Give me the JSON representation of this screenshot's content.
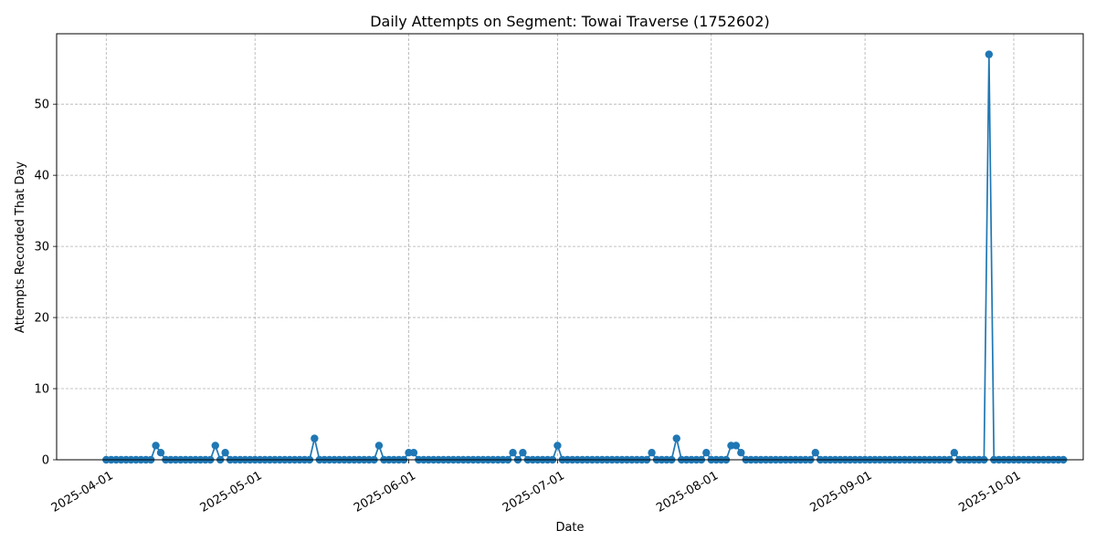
{
  "chart_data": {
    "type": "line",
    "title": "Daily Attempts on Segment: Towai Traverse (1752602)",
    "xlabel": "Date",
    "ylabel": "Attempts Recorded That Day",
    "xlim": [
      "2025-03-22",
      "2025-10-15"
    ],
    "ylim": [
      0,
      59.9
    ],
    "x_ticks": [
      "2025-04-01",
      "2025-05-01",
      "2025-06-01",
      "2025-07-01",
      "2025-08-01",
      "2025-09-01",
      "2025-10-01"
    ],
    "y_ticks": [
      0,
      10,
      20,
      30,
      40,
      50
    ],
    "grid": true,
    "series_color": "#1f77b4",
    "series": [
      {
        "start_date": "2025-04-01",
        "values": [
          0,
          0,
          0,
          0,
          0,
          0,
          0,
          0,
          0,
          0,
          2,
          1,
          0,
          0,
          0,
          0,
          0,
          0,
          0,
          0,
          0,
          0,
          2,
          0,
          1,
          0,
          0,
          0,
          0,
          0,
          0,
          0,
          0,
          0,
          0,
          0,
          0,
          0,
          0,
          0,
          0,
          0,
          3,
          0,
          0,
          0,
          0,
          0,
          0,
          0,
          0,
          0,
          0,
          0,
          0,
          2,
          0,
          0,
          0,
          0,
          0,
          1,
          1,
          0,
          0,
          0,
          0,
          0,
          0,
          0,
          0,
          0,
          0,
          0,
          0,
          0,
          0,
          0,
          0,
          0,
          0,
          0,
          1,
          0,
          1,
          0,
          0,
          0,
          0,
          0,
          0,
          2,
          0,
          0,
          0,
          0,
          0,
          0,
          0,
          0,
          0,
          0,
          0,
          0,
          0,
          0,
          0,
          0,
          0,
          0,
          1,
          0,
          0,
          0,
          0,
          3,
          0,
          0,
          0,
          0,
          0,
          1,
          0,
          0,
          0,
          0,
          2,
          2,
          1,
          0,
          0,
          0,
          0,
          0,
          0,
          0,
          0,
          0,
          0,
          0,
          0,
          0,
          0,
          1,
          0,
          0,
          0,
          0,
          0,
          0,
          0,
          0,
          0,
          0,
          0,
          0,
          0,
          0,
          0,
          0,
          0,
          0,
          0,
          0,
          0,
          0,
          0,
          0,
          0,
          0,
          0,
          1,
          0,
          0,
          0,
          0,
          0,
          0,
          57,
          0,
          0,
          0,
          0,
          0,
          0,
          0,
          0,
          0,
          0,
          0,
          0,
          0,
          0,
          0
        ]
      }
    ]
  }
}
